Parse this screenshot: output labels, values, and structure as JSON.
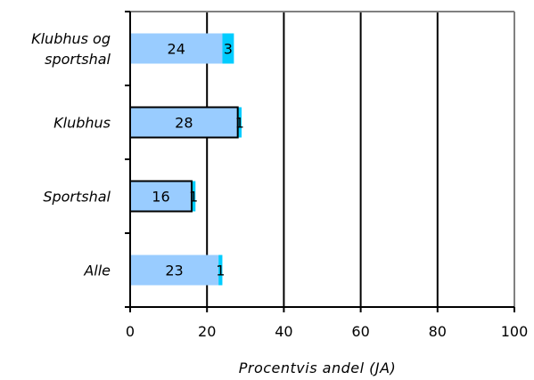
{
  "chart_data": {
    "type": "bar",
    "orientation": "horizontal",
    "stacked": true,
    "categories": [
      "Klubhus og sportshal",
      "Klubhus",
      "Sportshal",
      "Alle"
    ],
    "category_label_lines": [
      [
        "Klubhus og",
        "sportshal"
      ],
      [
        "Klubhus"
      ],
      [
        "Sportshal"
      ],
      [
        "Alle"
      ]
    ],
    "series": [
      {
        "values": [
          24,
          28,
          16,
          23
        ],
        "color": "#99ccff"
      },
      {
        "values": [
          3,
          1,
          1,
          1
        ],
        "color": "#00ccff"
      }
    ],
    "outlined_categories": [
      "Klubhus",
      "Sportshal"
    ],
    "xlabel": "Procentvis andel (JA)",
    "ylabel": "",
    "xlim": [
      0,
      100
    ],
    "xticks": [
      0,
      20,
      40,
      60,
      80,
      100
    ],
    "grid": "vertical",
    "legend": "none"
  }
}
